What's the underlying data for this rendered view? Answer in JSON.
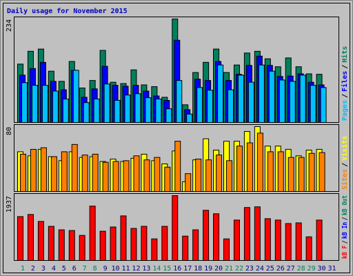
{
  "chart_data": [
    {
      "type": "bar",
      "title": "Daily usage for November 2015",
      "title_color": "#0000c0",
      "ylim": [
        0,
        234
      ],
      "yticks": [
        234
      ],
      "legend_separator": "/",
      "series": [
        {
          "name": "Hits",
          "color": "#00805c",
          "values": [
            132,
            161,
            166,
            116,
            93,
            138,
            78,
            95,
            163,
            91,
            88,
            119,
            85,
            81,
            57,
            234,
            40,
            113,
            136,
            166,
            113,
            130,
            157,
            161,
            144,
            126,
            146,
            126,
            110,
            109,
            null
          ]
        },
        {
          "name": "Files",
          "color": "#0000ff",
          "values": [
            107,
            122,
            136,
            93,
            74,
            118,
            57,
            76,
            127,
            84,
            82,
            84,
            71,
            60,
            50,
            186,
            29,
            98,
            95,
            138,
            95,
            109,
            129,
            150,
            129,
            104,
            105,
            110,
            91,
            85,
            null
          ]
        },
        {
          "name": "Pages",
          "color": "#00c0ff",
          "values": [
            90,
            84,
            84,
            71,
            53,
            118,
            45,
            53,
            87,
            50,
            62,
            65,
            56,
            53,
            31,
            95,
            19,
            79,
            73,
            130,
            74,
            107,
            91,
            130,
            116,
            96,
            93,
            107,
            84,
            79,
            null
          ]
        }
      ]
    },
    {
      "type": "bar",
      "ylim": [
        0,
        80
      ],
      "yticks": [
        80
      ],
      "legend_separator": "/",
      "series": [
        {
          "name": "Visits",
          "color": "#ffff00",
          "values": [
            49,
            44,
            52,
            43,
            38,
            49,
            42,
            43,
            37,
            40,
            37,
            41,
            46,
            38,
            34,
            50,
            12,
            39,
            65,
            51,
            62,
            62,
            74,
            80,
            56,
            56,
            52,
            44,
            51,
            52,
            null
          ]
        },
        {
          "name": "Sites",
          "color": "#ff8000",
          "values": [
            46,
            52,
            54,
            43,
            49,
            58,
            45,
            46,
            36,
            37,
            38,
            44,
            39,
            42,
            30,
            62,
            22,
            40,
            39,
            45,
            38,
            56,
            60,
            72,
            49,
            49,
            42,
            42,
            47,
            48,
            null
          ]
        }
      ]
    },
    {
      "type": "bar",
      "ylim": [
        0,
        1937
      ],
      "yticks": [
        1937
      ],
      "legend_separator": "/",
      "series": [
        {
          "name": "kB F",
          "color": "#ff0000",
          "values": [
            1311,
            1374,
            1166,
            1020,
            916,
            895,
            749,
            1624,
            874,
            1000,
            1332,
            957,
            1020,
            645,
            1020,
            1937,
            728,
            916,
            1499,
            1395,
            645,
            1207,
            1582,
            1603,
            1249,
            1207,
            1103,
            1124,
            707,
            1207,
            null
          ]
        }
      ],
      "legend_extra": [
        {
          "name": "kB In",
          "color": "#0000ff"
        },
        {
          "name": "kB Out",
          "color": "#00805c"
        }
      ],
      "categories": [
        "1",
        "2",
        "3",
        "4",
        "5",
        "6",
        "7",
        "8",
        "9",
        "10",
        "11",
        "12",
        "13",
        "14",
        "15",
        "16",
        "17",
        "18",
        "19",
        "20",
        "21",
        "22",
        "23",
        "24",
        "25",
        "26",
        "27",
        "28",
        "29",
        "30",
        "31"
      ],
      "category_colors": [
        "#00805c",
        "#000080",
        "#000080",
        "#000080",
        "#000080",
        "#000080",
        "#00805c",
        "#00805c",
        "#000080",
        "#000080",
        "#000080",
        "#000080",
        "#000080",
        "#00805c",
        "#00805c",
        "#000080",
        "#000080",
        "#000080",
        "#000080",
        "#000080",
        "#00805c",
        "#00805c",
        "#000080",
        "#000080",
        "#000080",
        "#000080",
        "#000080",
        "#00805c",
        "#00805c",
        "#000080",
        "#000080"
      ]
    }
  ]
}
